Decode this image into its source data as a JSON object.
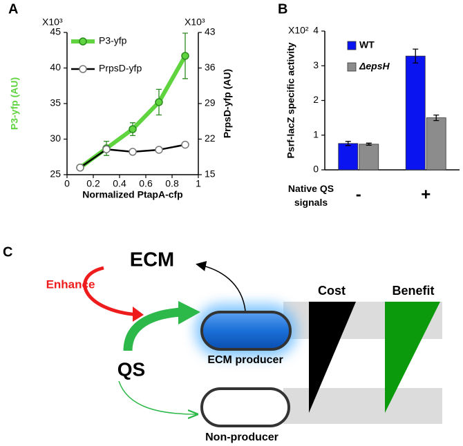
{
  "chart_data": [
    {
      "type": "line",
      "panel_label": "A",
      "x": [
        0.1,
        0.3,
        0.5,
        0.7,
        0.9
      ],
      "xlim": [
        0,
        1
      ],
      "xticks": [
        0,
        0.2,
        0.4,
        0.6,
        0.8,
        1
      ],
      "ylim": [
        25,
        45
      ],
      "yticks": [
        25,
        30,
        35,
        40,
        45
      ],
      "y2lim": [
        15,
        43
      ],
      "y2ticks": [
        15,
        22,
        29,
        36,
        43
      ],
      "y_multiplier": "X10³",
      "y2_multiplier": "X10³",
      "x_label": "Normalized PtapA-cfp",
      "y_label": "P3-yfp (AU)",
      "y_label_color": "#5fd43f",
      "y2_label": "PrpsD-yfp (AU)",
      "legend": "upper left",
      "series": [
        {
          "name": "P3-yfp",
          "color": "#5fd43f",
          "values": [
            26.0,
            28.7,
            31.4,
            35.2,
            41.7
          ],
          "errors": [
            0.3,
            1.0,
            0.9,
            1.8,
            3.2
          ]
        },
        {
          "name": "PrpsD-yfp",
          "color": "#000000",
          "axis": "y2",
          "values": [
            16.4,
            20.0,
            19.5,
            19.9,
            20.9
          ]
        }
      ]
    },
    {
      "type": "bar",
      "panel_label": "B",
      "categories": [
        "-",
        "+"
      ],
      "x_label": "Native QS signals",
      "ylim": [
        0,
        4
      ],
      "yticks": [
        0,
        1,
        2,
        3,
        4
      ],
      "y_multiplier": "X10²",
      "y_label": "Psrf-lacZ specific activity",
      "legend": "upper left",
      "series": [
        {
          "name": "WT",
          "color": "#0a14f0",
          "values": [
            0.76,
            3.28
          ],
          "errors": [
            0.06,
            0.2
          ]
        },
        {
          "name": "ΔepsH",
          "color": "#8c8c8c",
          "values": [
            0.74,
            1.5
          ],
          "errors": [
            0.03,
            0.08
          ]
        }
      ]
    }
  ],
  "diagram": {
    "panel_label": "C",
    "ecm": "ECM",
    "enhance": "Enhance",
    "qs": "QS",
    "producer": "ECM producer",
    "non_producer": "Non-producer",
    "cost": "Cost",
    "benefit": "Benefit"
  }
}
